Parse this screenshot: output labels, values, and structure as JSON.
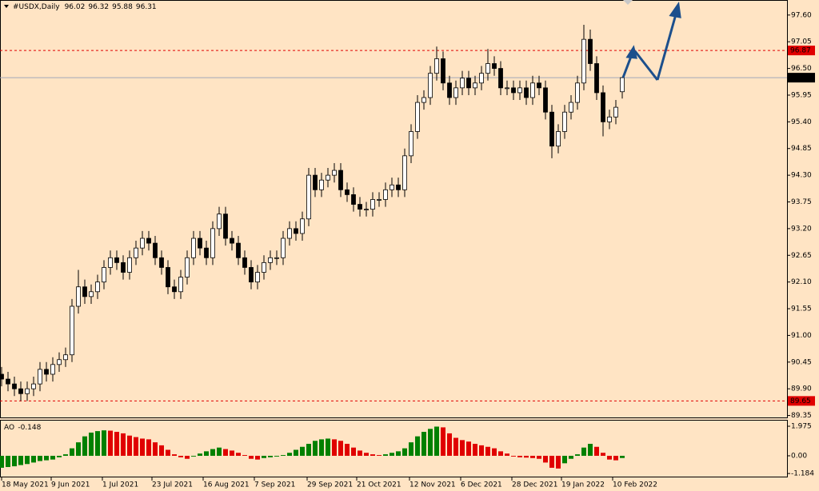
{
  "chart_data": [
    {
      "type": "candlestick",
      "title": "#USDX,Daily",
      "open": [
        90.2,
        90.1,
        90.0,
        89.9,
        89.8,
        89.9,
        90.0,
        90.3,
        90.2,
        90.4,
        90.5,
        90.6,
        91.6,
        92.0,
        91.8,
        91.9,
        92.1,
        92.4,
        92.6,
        92.5,
        92.3,
        92.6,
        92.8,
        93.0,
        92.9,
        92.6,
        92.4,
        92.0,
        91.9,
        92.2,
        92.6,
        93.0,
        92.8,
        92.6,
        93.2,
        93.5,
        93.0,
        92.9,
        92.6,
        92.4,
        92.1,
        92.3,
        92.5,
        92.6,
        92.6,
        93.0,
        93.2,
        93.1,
        93.4,
        94.3,
        94.0,
        94.2,
        94.3,
        94.4,
        94.0,
        93.9,
        93.7,
        93.6,
        93.6,
        93.8,
        93.8,
        94.0,
        94.1,
        94.0,
        94.7,
        95.2,
        95.8,
        95.9,
        96.4,
        96.7,
        96.2,
        95.9,
        96.1,
        96.3,
        96.1,
        96.2,
        96.4,
        96.6,
        96.5,
        96.1,
        96.1,
        96.0,
        96.1,
        95.9,
        96.2,
        96.1,
        95.6,
        94.9,
        95.2,
        95.6,
        95.8,
        96.2,
        97.1,
        96.6,
        96.0,
        95.4,
        95.5,
        96.02
      ],
      "high": [
        90.35,
        90.25,
        90.15,
        90.05,
        90.05,
        90.15,
        90.45,
        90.45,
        90.55,
        90.65,
        90.75,
        91.75,
        92.35,
        92.15,
        92.05,
        92.25,
        92.55,
        92.75,
        92.75,
        92.65,
        92.75,
        92.95,
        93.15,
        93.15,
        93.05,
        92.75,
        92.55,
        92.15,
        92.35,
        92.75,
        93.15,
        93.15,
        92.95,
        93.35,
        93.65,
        93.65,
        93.15,
        93.05,
        92.75,
        92.55,
        92.45,
        92.65,
        92.75,
        92.75,
        93.15,
        93.35,
        93.35,
        93.55,
        94.45,
        94.45,
        94.35,
        94.45,
        94.55,
        94.55,
        94.15,
        94.05,
        93.85,
        93.75,
        93.95,
        93.95,
        94.15,
        94.25,
        94.25,
        94.85,
        95.35,
        95.95,
        96.05,
        96.55,
        96.95,
        96.85,
        96.35,
        96.25,
        96.45,
        96.45,
        96.35,
        96.55,
        96.9,
        96.75,
        96.65,
        96.25,
        96.25,
        96.25,
        96.25,
        96.35,
        96.35,
        96.25,
        95.75,
        95.35,
        95.75,
        95.95,
        96.35,
        97.4,
        97.3,
        96.75,
        96.15,
        95.65,
        95.85,
        96.32
      ],
      "low": [
        89.95,
        89.85,
        89.75,
        89.65,
        89.65,
        89.75,
        89.85,
        90.05,
        90.05,
        90.25,
        90.35,
        90.45,
        91.45,
        91.65,
        91.65,
        91.75,
        91.95,
        92.25,
        92.35,
        92.15,
        92.15,
        92.45,
        92.65,
        92.75,
        92.45,
        92.25,
        91.85,
        91.75,
        91.75,
        92.05,
        92.45,
        92.65,
        92.45,
        92.45,
        93.05,
        92.85,
        92.75,
        92.45,
        92.25,
        91.95,
        91.95,
        92.15,
        92.35,
        92.45,
        92.45,
        92.85,
        92.95,
        92.95,
        93.25,
        93.85,
        93.85,
        94.05,
        94.15,
        93.85,
        93.75,
        93.55,
        93.45,
        93.45,
        93.45,
        93.65,
        93.65,
        93.85,
        93.85,
        93.85,
        94.55,
        95.05,
        95.65,
        95.75,
        96.25,
        96.05,
        95.75,
        95.75,
        95.95,
        95.95,
        95.95,
        96.05,
        96.25,
        96.35,
        95.95,
        95.95,
        95.85,
        95.85,
        95.75,
        95.75,
        95.95,
        95.45,
        94.65,
        94.75,
        95.05,
        95.45,
        95.65,
        96.05,
        96.45,
        95.85,
        95.1,
        95.25,
        95.35,
        95.88
      ],
      "close": [
        90.1,
        90.0,
        89.9,
        89.8,
        89.9,
        90.0,
        90.3,
        90.2,
        90.4,
        90.5,
        90.6,
        91.6,
        92.0,
        91.8,
        91.9,
        92.1,
        92.4,
        92.6,
        92.5,
        92.3,
        92.6,
        92.8,
        93.0,
        92.9,
        92.6,
        92.4,
        92.0,
        91.9,
        92.2,
        92.6,
        93.0,
        92.8,
        92.6,
        93.2,
        93.5,
        93.0,
        92.9,
        92.6,
        92.4,
        92.1,
        92.3,
        92.5,
        92.6,
        92.6,
        93.0,
        93.2,
        93.1,
        93.4,
        94.3,
        94.0,
        94.2,
        94.3,
        94.4,
        94.0,
        93.9,
        93.7,
        93.6,
        93.6,
        93.8,
        93.8,
        94.0,
        94.1,
        94.0,
        94.7,
        95.2,
        95.8,
        95.9,
        96.4,
        96.7,
        96.2,
        95.9,
        96.1,
        96.3,
        96.1,
        96.2,
        96.4,
        96.6,
        96.5,
        96.1,
        96.1,
        96.0,
        96.1,
        95.9,
        96.2,
        96.1,
        95.6,
        94.9,
        95.2,
        95.6,
        95.8,
        96.2,
        97.1,
        96.6,
        96.0,
        95.4,
        95.5,
        95.7,
        96.31
      ],
      "xlim": [
        -0.25,
        122.75
      ],
      "xticks": [
        {
          "value": 0,
          "label": "18 May 2021"
        },
        {
          "value": 7.75,
          "label": "9 Jun 2021"
        },
        {
          "value": 15.75,
          "label": "1 Jul 2021"
        },
        {
          "value": 23.5,
          "label": "23 Jul 2021"
        },
        {
          "value": 31.5,
          "label": "16 Aug 2021"
        },
        {
          "value": 39.5,
          "label": "7 Sep 2021"
        },
        {
          "value": 47.75,
          "label": "29 Sep 2021"
        },
        {
          "value": 55.5,
          "label": "21 Oct 2021"
        },
        {
          "value": 63.75,
          "label": "12 Nov 2021"
        },
        {
          "value": 71.75,
          "label": "6 Dec 2021"
        },
        {
          "value": 79.75,
          "label": "28 Dec 2021"
        },
        {
          "value": 87.5,
          "label": "19 Jan 2022"
        },
        {
          "value": 95.5,
          "label": "10 Feb 2022"
        }
      ],
      "ylim": [
        89.31,
        97.91
      ],
      "yticks": [
        {
          "value": 97.6,
          "label": "97.60"
        },
        97.05,
        {
          "value": 96.5,
          "label": "96.50"
        },
        95.95,
        {
          "value": 95.4,
          "label": "95.40"
        },
        94.85,
        {
          "value": 94.3,
          "label": "94.30"
        },
        93.75,
        {
          "value": 93.2,
          "label": "93.20"
        },
        92.65,
        {
          "value": 92.1,
          "label": "92.10"
        },
        91.55,
        {
          "value": 91.0,
          "label": "91.00"
        },
        90.45,
        {
          "value": 89.9,
          "label": "89.90"
        },
        89.35
      ],
      "levels": [
        96.87,
        89.65
      ],
      "level_color": "#e00000",
      "current_price": 96.31,
      "current_color": "#a0a8b8",
      "up_color": "#ffffff",
      "down_color": "#000000"
    },
    {
      "type": "bar",
      "title": "AO",
      "values": [
        -0.8,
        -0.75,
        -0.7,
        -0.62,
        -0.55,
        -0.45,
        -0.35,
        -0.3,
        -0.25,
        -0.1,
        0.1,
        0.5,
        0.9,
        1.3,
        1.55,
        1.65,
        1.7,
        1.68,
        1.6,
        1.5,
        1.35,
        1.25,
        1.15,
        1.1,
        0.9,
        0.7,
        0.4,
        0.1,
        -0.1,
        -0.2,
        -0.05,
        0.15,
        0.3,
        0.45,
        0.55,
        0.45,
        0.35,
        0.2,
        0.05,
        -0.2,
        -0.25,
        -0.15,
        -0.1,
        -0.05,
        0.05,
        0.2,
        0.4,
        0.6,
        0.8,
        1.0,
        1.1,
        1.15,
        1.1,
        1.0,
        0.8,
        0.55,
        0.35,
        0.2,
        0.1,
        0.05,
        0.1,
        0.2,
        0.3,
        0.5,
        0.9,
        1.3,
        1.6,
        1.8,
        1.95,
        1.9,
        1.5,
        1.2,
        1.05,
        0.95,
        0.8,
        0.7,
        0.6,
        0.5,
        0.3,
        0.15,
        -0.05,
        -0.1,
        -0.12,
        -0.15,
        -0.2,
        -0.45,
        -0.8,
        -0.85,
        -0.5,
        -0.2,
        0.1,
        0.55,
        0.8,
        0.6,
        0.2,
        -0.25,
        -0.3,
        -0.148
      ],
      "ylim": [
        -1.39,
        2.35
      ],
      "yticks": [
        1.975,
        {
          "value": 0,
          "label": "0.00"
        },
        -1.184
      ],
      "up_color": "#008000",
      "down_color": "#e00000"
    }
  ]
}
